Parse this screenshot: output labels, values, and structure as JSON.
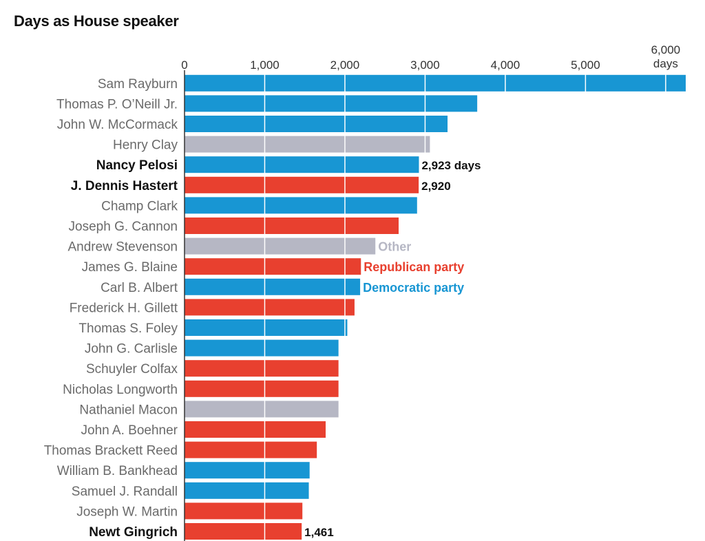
{
  "chart_data": {
    "type": "bar",
    "orientation": "horizontal",
    "title": "Days as House speaker",
    "xlim": [
      0,
      6250
    ],
    "grid": true,
    "ticks": [
      {
        "value": 0,
        "label": "0"
      },
      {
        "value": 1000,
        "label": "1,000"
      },
      {
        "value": 2000,
        "label": "2,000"
      },
      {
        "value": 3000,
        "label": "3,000"
      },
      {
        "value": 4000,
        "label": "4,000"
      },
      {
        "value": 5000,
        "label": "5,000"
      },
      {
        "value": 6000,
        "label": "6,000",
        "unit": "days"
      }
    ],
    "party_colors": {
      "Democratic": "#1896d3",
      "Republican": "#e8402f",
      "Other": "#b6b7c4"
    },
    "bars": [
      {
        "name": "Sam Rayburn",
        "value": 6250,
        "party": "Democratic",
        "bold": false
      },
      {
        "name": "Thomas P. O’Neill Jr.",
        "value": 3650,
        "party": "Democratic",
        "bold": false
      },
      {
        "name": "John W. McCormack",
        "value": 3280,
        "party": "Democratic",
        "bold": false
      },
      {
        "name": "Henry Clay",
        "value": 3060,
        "party": "Other",
        "bold": false
      },
      {
        "name": "Nancy Pelosi",
        "value": 2923,
        "party": "Democratic",
        "bold": true,
        "label": "2,923 days"
      },
      {
        "name": "J. Dennis Hastert",
        "value": 2920,
        "party": "Republican",
        "bold": true,
        "label": "2,920"
      },
      {
        "name": "Champ Clark",
        "value": 2900,
        "party": "Democratic",
        "bold": false
      },
      {
        "name": "Joseph G. Cannon",
        "value": 2670,
        "party": "Republican",
        "bold": false
      },
      {
        "name": "Andrew Stevenson",
        "value": 2380,
        "party": "Other",
        "bold": false,
        "annotation": "Other"
      },
      {
        "name": "James G. Blaine",
        "value": 2200,
        "party": "Republican",
        "bold": false,
        "annotation": "Republican party"
      },
      {
        "name": "Carl B. Albert",
        "value": 2190,
        "party": "Democratic",
        "bold": false,
        "annotation": "Democratic party"
      },
      {
        "name": "Frederick H. Gillett",
        "value": 2120,
        "party": "Republican",
        "bold": false
      },
      {
        "name": "Thomas S. Foley",
        "value": 2030,
        "party": "Democratic",
        "bold": false
      },
      {
        "name": "John G. Carlisle",
        "value": 1920,
        "party": "Democratic",
        "bold": false
      },
      {
        "name": "Schuyler Colfax",
        "value": 1920,
        "party": "Republican",
        "bold": false
      },
      {
        "name": "Nicholas Longworth",
        "value": 1920,
        "party": "Republican",
        "bold": false
      },
      {
        "name": "Nathaniel Macon",
        "value": 1920,
        "party": "Other",
        "bold": false
      },
      {
        "name": "John A. Boehner",
        "value": 1760,
        "party": "Republican",
        "bold": false
      },
      {
        "name": "Thomas Brackett Reed",
        "value": 1650,
        "party": "Republican",
        "bold": false
      },
      {
        "name": "William B. Bankhead",
        "value": 1560,
        "party": "Democratic",
        "bold": false
      },
      {
        "name": "Samuel J. Randall",
        "value": 1550,
        "party": "Democratic",
        "bold": false
      },
      {
        "name": "Joseph W. Martin",
        "value": 1470,
        "party": "Republican",
        "bold": false
      },
      {
        "name": "Newt Gingrich",
        "value": 1461,
        "party": "Republican",
        "bold": true,
        "label": "1,461"
      }
    ]
  }
}
